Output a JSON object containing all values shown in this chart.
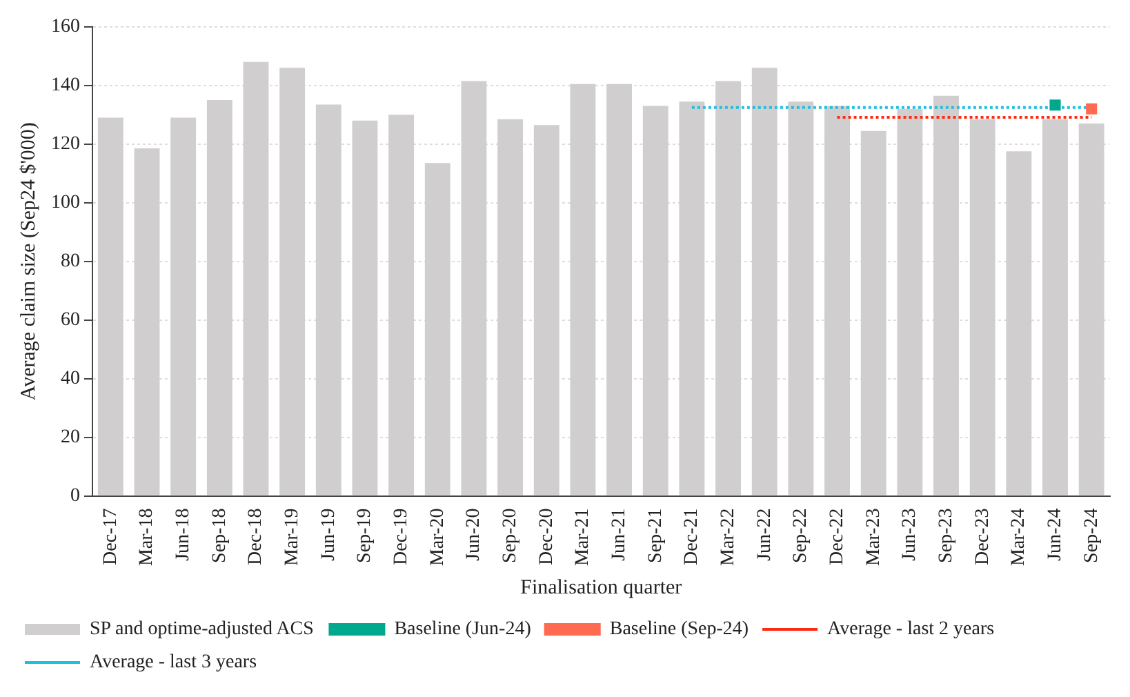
{
  "chart_data": {
    "type": "bar",
    "xlabel": "Finalisation quarter",
    "ylabel": "Average claim size (Sep24 $'000)",
    "categories": [
      "Dec-17",
      "Mar-18",
      "Jun-18",
      "Sep-18",
      "Dec-18",
      "Mar-19",
      "Jun-19",
      "Sep-19",
      "Dec-19",
      "Mar-20",
      "Jun-20",
      "Sep-20",
      "Dec-20",
      "Mar-21",
      "Jun-21",
      "Sep-21",
      "Dec-21",
      "Mar-22",
      "Jun-22",
      "Sep-22",
      "Dec-22",
      "Mar-23",
      "Jun-23",
      "Sep-23",
      "Dec-23",
      "Mar-24",
      "Jun-24",
      "Sep-24"
    ],
    "series": [
      {
        "name": "SP and optime-adjusted ACS",
        "color": "#d0cecf",
        "values": [
          129,
          118.5,
          129,
          135,
          148,
          146,
          133.5,
          128,
          130,
          113.5,
          141.5,
          128.5,
          126.5,
          140.5,
          140.5,
          133,
          134.5,
          141.5,
          146,
          134.5,
          133,
          124.5,
          132,
          136.5,
          128.5,
          117.5,
          128.5,
          127
        ]
      },
      {
        "name": "Baseline (Jun-24)",
        "type": "scatter",
        "marker": "square",
        "color": "#00a88e",
        "values": [
          null,
          null,
          null,
          null,
          null,
          null,
          null,
          null,
          null,
          null,
          null,
          null,
          null,
          null,
          null,
          null,
          null,
          null,
          null,
          null,
          null,
          null,
          null,
          null,
          null,
          null,
          133.3,
          null
        ]
      },
      {
        "name": "Baseline (Sep-24)",
        "type": "scatter",
        "marker": "square",
        "color": "#ff6b50",
        "values": [
          null,
          null,
          null,
          null,
          null,
          null,
          null,
          null,
          null,
          null,
          null,
          null,
          null,
          null,
          null,
          null,
          null,
          null,
          null,
          null,
          null,
          null,
          null,
          null,
          null,
          null,
          null,
          132
        ]
      },
      {
        "name": "Average - last 2 years",
        "type": "line",
        "line_style": "dotted",
        "marker": "none",
        "color": "#ff2a10",
        "values": [
          null,
          null,
          null,
          null,
          null,
          null,
          null,
          null,
          null,
          null,
          null,
          null,
          null,
          null,
          null,
          null,
          null,
          null,
          null,
          null,
          129.1,
          129.1,
          129.1,
          129.1,
          129.1,
          129.1,
          129.1,
          129.1
        ]
      },
      {
        "name": "Average - last 3 years",
        "type": "line",
        "line_style": "dotted",
        "marker": "none",
        "color": "#1ec0e0",
        "values": [
          null,
          null,
          null,
          null,
          null,
          null,
          null,
          null,
          null,
          null,
          null,
          null,
          null,
          null,
          null,
          null,
          132.5,
          132.5,
          132.5,
          132.5,
          132.5,
          132.5,
          132.5,
          132.5,
          132.5,
          132.5,
          132.5,
          132.5
        ]
      }
    ],
    "ylim": [
      0,
      160
    ],
    "yticks": [
      0,
      20,
      40,
      60,
      80,
      100,
      120,
      140,
      160
    ],
    "grid": "y",
    "legend": "bottom"
  }
}
